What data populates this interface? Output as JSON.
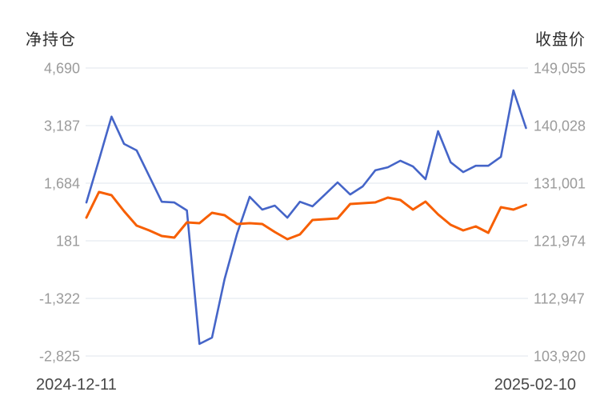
{
  "page": {
    "background": "#ffffff"
  },
  "colors": {
    "grid_line": "#dfe6ee",
    "tick_label": "#9b9b9b",
    "axis_title": "#2e2e2e",
    "date_label": "#474747",
    "net_position_line": "#4565c8",
    "close_price_line": "#f75f02"
  },
  "chart_data": {
    "type": "line",
    "title": "",
    "grid": true,
    "x_count": 36,
    "x_start_label": "2024-12-11",
    "x_end_label": "2025-02-10",
    "left_axis": {
      "title": "净持仓",
      "tick_labels": [
        "4,690",
        "3,187",
        "1,684",
        "181",
        "-1,322",
        "-2,825"
      ],
      "tick_values": [
        4690,
        3187,
        1684,
        181,
        -1322,
        -2825
      ],
      "range": [
        -2825,
        4690
      ]
    },
    "right_axis": {
      "title": "收盘价",
      "tick_labels": [
        "149,055",
        "140,028",
        "131,001",
        "121,974",
        "112,947",
        "103,920"
      ],
      "tick_values": [
        149055,
        140028,
        131001,
        121974,
        112947,
        103920
      ],
      "range": [
        103920,
        149055
      ]
    },
    "series": [
      {
        "name": "净持仓",
        "axis": "left",
        "color": "#4565c8",
        "stroke_width": 2.6,
        "values": [
          1180,
          2290,
          3420,
          2710,
          2540,
          1870,
          1200,
          1180,
          975,
          -2510,
          -2345,
          -820,
          370,
          1330,
          995,
          1100,
          785,
          1200,
          1080,
          1390,
          1705,
          1390,
          1600,
          2020,
          2100,
          2270,
          2120,
          1790,
          3040,
          2230,
          1975,
          2140,
          2140,
          2370,
          4105,
          3125
        ]
      },
      {
        "name": "收盘价",
        "axis": "right",
        "color": "#f75f02",
        "stroke_width": 3,
        "values": [
          125610,
          129620,
          129120,
          126610,
          124355,
          123600,
          122725,
          122475,
          124855,
          124730,
          126360,
          125985,
          124605,
          124730,
          124605,
          123350,
          122225,
          122975,
          125235,
          125360,
          125485,
          127740,
          127865,
          127990,
          128745,
          128370,
          126865,
          128120,
          126110,
          124480,
          123600,
          124230,
          123230,
          127240,
          126865,
          127615
        ]
      }
    ]
  }
}
